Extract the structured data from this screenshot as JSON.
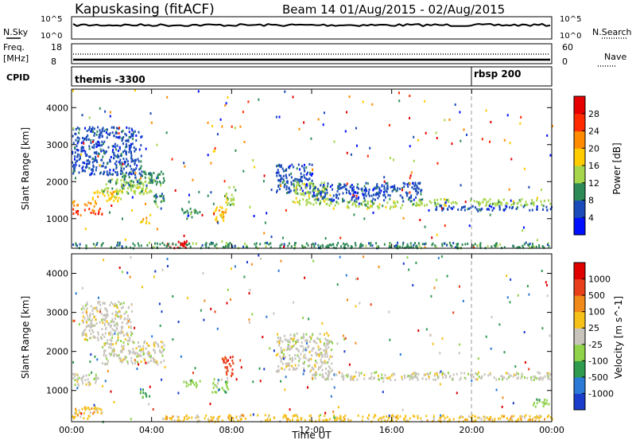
{
  "header": {
    "title": "Kapuskasing (fitACF)",
    "subtitle": "Beam 14 01/Aug/2015 - 02/Aug/2015"
  },
  "nsky_panel": {
    "left_label": "N.Sky",
    "left_ticks": [
      "10^5",
      "10^0"
    ],
    "right_ticks": [
      "10^5",
      "10^0"
    ],
    "right_label": "N.Search"
  },
  "freq_panel": {
    "left_label_1": "Freq.",
    "left_label_2": "[MHz]",
    "left_ticks": [
      "18",
      "8"
    ],
    "right_ticks": [
      "60",
      "0"
    ],
    "right_label": "Nave"
  },
  "cpid_panel": {
    "label": "CPID",
    "events": [
      {
        "text": "themis -3300",
        "hour": 0.0
      },
      {
        "text": "rbsp 200",
        "hour": 20.0
      }
    ]
  },
  "x_axis": {
    "ticks": [
      "00:00",
      "04:00",
      "08:00",
      "12:00",
      "16:00",
      "20:00",
      "00:00"
    ],
    "tick_hours": [
      0,
      4,
      8,
      12,
      16,
      20,
      24
    ],
    "label": "Time UT"
  },
  "power_panel": {
    "ylabel": "Slant Range [km]",
    "yticks": [
      "1000",
      "2000",
      "3000",
      "4000"
    ],
    "colorbar_label": "Power [dB]",
    "colorbar_ticks": [
      "4",
      "8",
      "12",
      "16",
      "20",
      "24",
      "28"
    ],
    "colors": [
      "#0010ff",
      "#1a4bb8",
      "#2e8b57",
      "#a6d64b",
      "#ffcc00",
      "#ff8c00",
      "#ff2a00",
      "#e60000"
    ]
  },
  "velocity_panel": {
    "ylabel": "Slant Range [km]",
    "yticks": [
      "1000",
      "2000",
      "3000",
      "4000"
    ],
    "colorbar_label": "Velocity [m s^-1]",
    "colorbar_ticks": [
      "1000",
      "500",
      "100",
      "25",
      "-25",
      "-100",
      "-500",
      "-1000"
    ],
    "colors": [
      "#1a3dcc",
      "#2a7ad6",
      "#2e9b4f",
      "#8fd34a",
      "#c8c4bc",
      "#f6c21a",
      "#f08a1a",
      "#e8401a",
      "#e00000"
    ],
    "ground_color": "#c8c4bc"
  },
  "chart_data": {
    "type": "heatmap",
    "x_unit": "hour UT",
    "xlim": [
      0,
      24
    ],
    "ylim": [
      200,
      4500
    ],
    "y_unit": "km",
    "reference_line_hour": 20.0,
    "power_regions": [
      {
        "t0": 0.0,
        "t1": 1.5,
        "r0": 1150,
        "r1": 1300,
        "level": 6
      },
      {
        "t0": 0.0,
        "t1": 1.2,
        "r0": 1350,
        "r1": 1500,
        "level": 5
      },
      {
        "t0": 1.0,
        "t1": 2.5,
        "r0": 1500,
        "r1": 1800,
        "level": 4
      },
      {
        "t0": 1.5,
        "t1": 4.0,
        "r0": 1700,
        "r1": 2100,
        "level": 3
      },
      {
        "t0": 2.5,
        "t1": 4.6,
        "r0": 1900,
        "r1": 2300,
        "level": 2
      },
      {
        "t0": 0.0,
        "t1": 3.5,
        "r0": 2200,
        "r1": 3500,
        "level": 1
      },
      {
        "t0": 3.4,
        "t1": 3.9,
        "r0": 900,
        "r1": 1100,
        "level": 4
      },
      {
        "t0": 4.0,
        "t1": 4.6,
        "r0": 1300,
        "r1": 1700,
        "level": 2
      },
      {
        "t0": 5.4,
        "t1": 6.4,
        "r0": 1100,
        "r1": 1300,
        "level": 2
      },
      {
        "t0": 7.0,
        "t1": 7.8,
        "r0": 950,
        "r1": 1350,
        "level": 4
      },
      {
        "t0": 7.6,
        "t1": 8.1,
        "r0": 1400,
        "r1": 1900,
        "level": 3
      },
      {
        "t0": 4.6,
        "t1": 5.8,
        "r0": 230,
        "r1": 420,
        "level": 7
      },
      {
        "t0": 10.2,
        "t1": 12.0,
        "r0": 1700,
        "r1": 2500,
        "level": 1
      },
      {
        "t0": 11.0,
        "t1": 12.8,
        "r0": 1400,
        "r1": 2000,
        "level": 3
      },
      {
        "t0": 12.8,
        "t1": 16.5,
        "r0": 1300,
        "r1": 1500,
        "level": 3
      },
      {
        "t0": 12.0,
        "t1": 17.5,
        "r0": 1500,
        "r1": 2000,
        "level": 1
      },
      {
        "t0": 17.0,
        "t1": 24.0,
        "r0": 1380,
        "r1": 1560,
        "level": 3
      },
      {
        "t0": 18.0,
        "t1": 24.0,
        "r0": 1250,
        "r1": 1380,
        "level": 1
      },
      {
        "t0": 0.0,
        "t1": 24.0,
        "r0": 230,
        "r1": 380,
        "level": 2
      }
    ],
    "velocity_regions": [
      {
        "t0": 0.0,
        "t1": 1.5,
        "r0": 1150,
        "r1": 1450,
        "level": 4
      },
      {
        "t0": 1.5,
        "t1": 4.6,
        "r0": 1700,
        "r1": 2300,
        "level": 4
      },
      {
        "t0": 0.5,
        "t1": 3.0,
        "r0": 2300,
        "r1": 3300,
        "level": 4
      },
      {
        "t0": 3.4,
        "t1": 3.9,
        "r0": 850,
        "r1": 1100,
        "level": 2
      },
      {
        "t0": 5.4,
        "t1": 6.4,
        "r0": 1100,
        "r1": 1300,
        "level": 3
      },
      {
        "t0": 7.0,
        "t1": 7.8,
        "r0": 950,
        "r1": 1350,
        "level": 3
      },
      {
        "t0": 7.5,
        "t1": 8.1,
        "r0": 1400,
        "r1": 1900,
        "level": 7
      },
      {
        "t0": 0.0,
        "t1": 1.5,
        "r0": 300,
        "r1": 600,
        "level": 5
      },
      {
        "t0": 10.2,
        "t1": 13.0,
        "r0": 1500,
        "r1": 2500,
        "level": 4
      },
      {
        "t0": 12.0,
        "t1": 24.0,
        "r0": 1300,
        "r1": 1500,
        "level": 4
      },
      {
        "t0": 4.5,
        "t1": 24.0,
        "r0": 230,
        "r1": 400,
        "level": 5
      },
      {
        "t0": 23.0,
        "t1": 24.0,
        "r0": 600,
        "r1": 800,
        "level": 3
      }
    ]
  }
}
